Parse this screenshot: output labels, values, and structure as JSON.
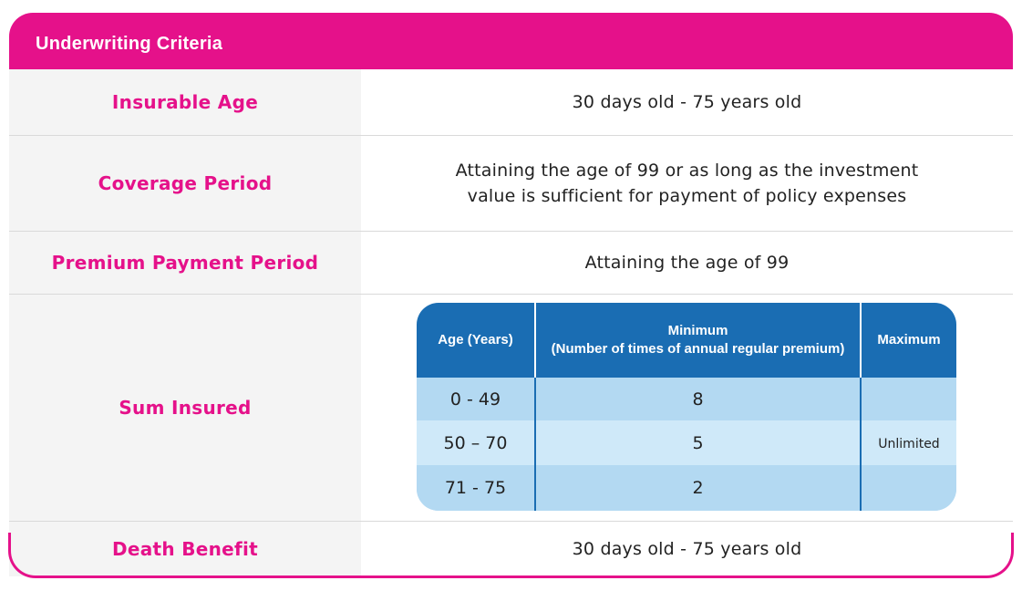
{
  "header": {
    "title": "Underwriting Criteria"
  },
  "rows": {
    "insurable_age": {
      "label": "Insurable Age",
      "value": "30 days old - 75 years old"
    },
    "coverage_period": {
      "label": "Coverage Period",
      "value_line1": "Attaining the age of 99 or as long as the investment",
      "value_line2": "value is sufficient for payment of policy expenses"
    },
    "premium_payment_period": {
      "label": "Premium Payment Period",
      "value": "Attaining the age of 99"
    },
    "sum_insured": {
      "label": "Sum Insured"
    },
    "death_benefit": {
      "label": "Death Benefit",
      "value": "30 days old - 75 years old"
    }
  },
  "sum_table": {
    "headers": {
      "age": "Age (Years)",
      "minimum_line1": "Minimum",
      "minimum_line2": "(Number of times of annual regular premium)",
      "maximum": "Maximum"
    },
    "rows": [
      {
        "age": "0 - 49",
        "minimum": "8"
      },
      {
        "age": "50 – 70",
        "minimum": "5"
      },
      {
        "age": "71 - 75",
        "minimum": "2"
      }
    ],
    "maximum_value": "Unlimited"
  },
  "colors": {
    "brand_pink": "#e5118a",
    "table_header_blue": "#1a6db3",
    "row_blue_dark": "#b3d9f2",
    "row_blue_light": "#cfe9f9",
    "label_bg": "#f4f4f4"
  }
}
